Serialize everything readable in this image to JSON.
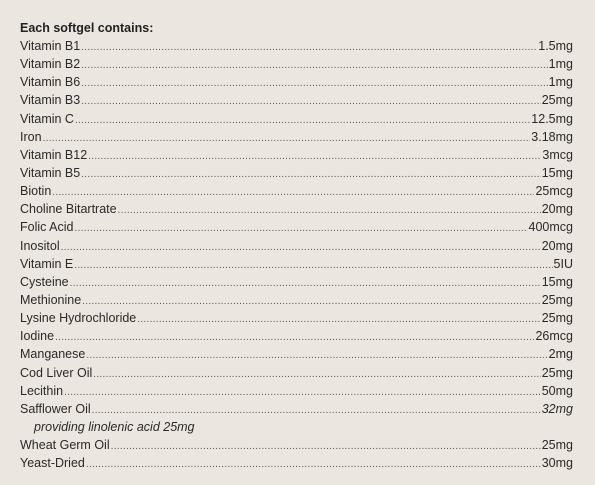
{
  "heading": "Each softgel contains:",
  "ingredients": [
    {
      "name": "Vitamin B1",
      "amount": "1.5mg"
    },
    {
      "name": "Vitamin B2",
      "amount": "1mg"
    },
    {
      "name": "Vitamin B6",
      "amount": "1mg"
    },
    {
      "name": "Vitamin B3",
      "amount": "25mg"
    },
    {
      "name": "Vitamin C",
      "amount": "12.5mg"
    },
    {
      "name": "Iron",
      "amount": "3.18mg"
    },
    {
      "name": "Vitamin B12",
      "amount": "3mcg"
    },
    {
      "name": "Vitamin B5",
      "amount": "15mg"
    },
    {
      "name": "Biotin",
      "amount": "25mcg"
    },
    {
      "name": "Choline Bitartrate",
      "amount": "20mg"
    },
    {
      "name": "Folic Acid",
      "amount": "400mcg"
    },
    {
      "name": "Inositol",
      "amount": "20mg"
    },
    {
      "name": "Vitamin E",
      "amount": "5IU"
    },
    {
      "name": "Cysteine",
      "amount": "15mg"
    },
    {
      "name": "Methionine",
      "amount": "25mg"
    },
    {
      "name": "Lysine Hydrochloride",
      "amount": "25mg"
    },
    {
      "name": "Iodine",
      "amount": "26mcg"
    },
    {
      "name": "Manganese",
      "amount": "2mg"
    },
    {
      "name": "Cod Liver Oil",
      "amount": "25mg"
    },
    {
      "name": "Lecithin",
      "amount": "50mg"
    },
    {
      "name": "Safflower Oil",
      "amount": "32mg"
    },
    {
      "name": "Wheat Germ Oil",
      "amount": "25mg"
    },
    {
      "name": "Yeast-Dried",
      "amount": "30mg"
    }
  ],
  "safflower_note": "providing linolenic acid 25mg"
}
